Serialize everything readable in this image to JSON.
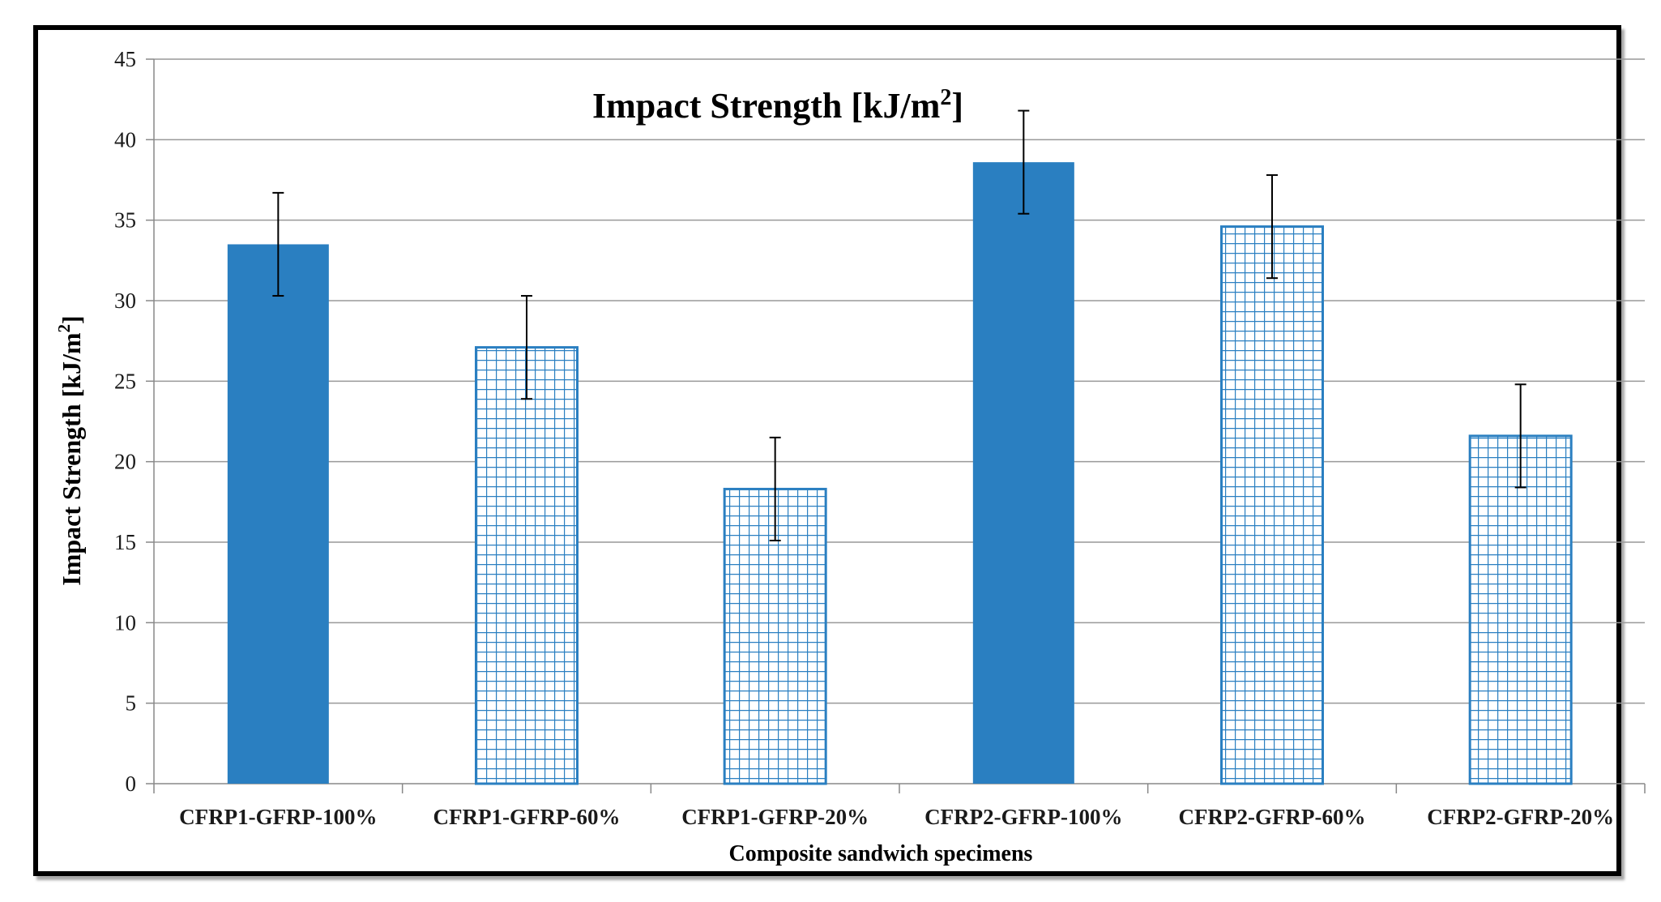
{
  "chart_data": {
    "type": "bar",
    "title": "Impact Strength [kJ/m",
    "title_sup": "2",
    "title_end": "]",
    "xlabel": "Composite sandwich specimens",
    "ylabel": "Impact Strength [kJ/m",
    "ylabel_sup": "2",
    "ylabel_end": "]",
    "ylim": [
      0,
      45
    ],
    "ytick_step": 5,
    "yticks": [
      "0",
      "5",
      "10",
      "15",
      "20",
      "25",
      "30",
      "35",
      "40",
      "45"
    ],
    "grid": true,
    "categories": [
      "CFRP1-GFRP-100%",
      "CFRP1-GFRP-60%",
      "CFRP1-GFRP-20%",
      "CFRP2-GFRP-100%",
      "CFRP2-GFRP-60%",
      "CFRP2-GFRP-20%"
    ],
    "values": [
      33.5,
      27.1,
      18.3,
      38.6,
      34.6,
      21.6
    ],
    "errors": [
      3.2,
      3.2,
      3.2,
      3.2,
      3.2,
      3.2
    ],
    "fills": [
      "solid",
      "grid",
      "grid",
      "solid",
      "grid",
      "grid"
    ],
    "colors": {
      "bar": "#2a7fc1",
      "grid": "#999999",
      "axis": "#888888",
      "error": "#000000"
    }
  }
}
